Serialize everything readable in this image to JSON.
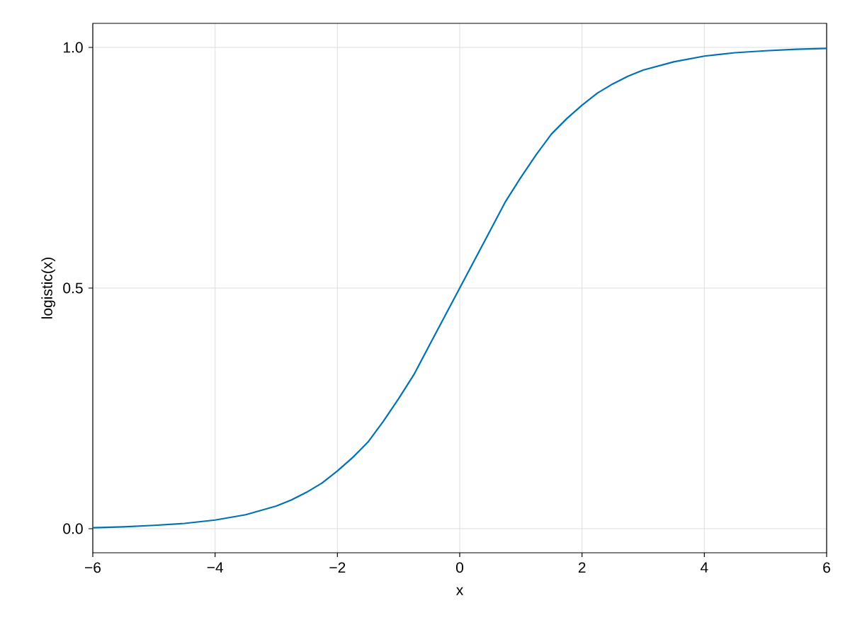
{
  "chart_data": {
    "type": "line",
    "xlabel": "x",
    "ylabel": "logistic(x)",
    "x": [
      -6,
      -5.5,
      -5,
      -4.5,
      -4,
      -3.5,
      -3,
      -2.75,
      -2.5,
      -2.25,
      -2,
      -1.75,
      -1.5,
      -1.25,
      -1,
      -0.75,
      -0.5,
      -0.25,
      0,
      0.25,
      0.5,
      0.75,
      1,
      1.25,
      1.5,
      1.75,
      2,
      2.25,
      2.5,
      2.75,
      3,
      3.5,
      4,
      4.5,
      5,
      5.5,
      6
    ],
    "series": [
      {
        "color": "#0072b2",
        "values": [
          0.002,
          0.004,
          0.007,
          0.011,
          0.018,
          0.029,
          0.047,
          0.06,
          0.076,
          0.095,
          0.12,
          0.148,
          0.18,
          0.223,
          0.27,
          0.32,
          0.38,
          0.44,
          0.5,
          0.56,
          0.62,
          0.68,
          0.73,
          0.777,
          0.82,
          0.852,
          0.88,
          0.905,
          0.924,
          0.94,
          0.953,
          0.97,
          0.982,
          0.989,
          0.993,
          0.996,
          0.998
        ]
      }
    ],
    "xlim": [
      -6,
      6
    ],
    "ylim": [
      -0.05,
      1.05
    ],
    "xticks": [
      {
        "value": -6,
        "label": "−6"
      },
      {
        "value": -4,
        "label": "−4"
      },
      {
        "value": -2,
        "label": "−2"
      },
      0,
      2,
      4,
      6
    ],
    "yticks": [
      {
        "value": 0,
        "label": "0.0"
      },
      {
        "value": 0.5,
        "label": "0.5"
      },
      {
        "value": 1,
        "label": "1.0"
      }
    ],
    "grid": true,
    "marker": "none",
    "line_style": "solid"
  }
}
